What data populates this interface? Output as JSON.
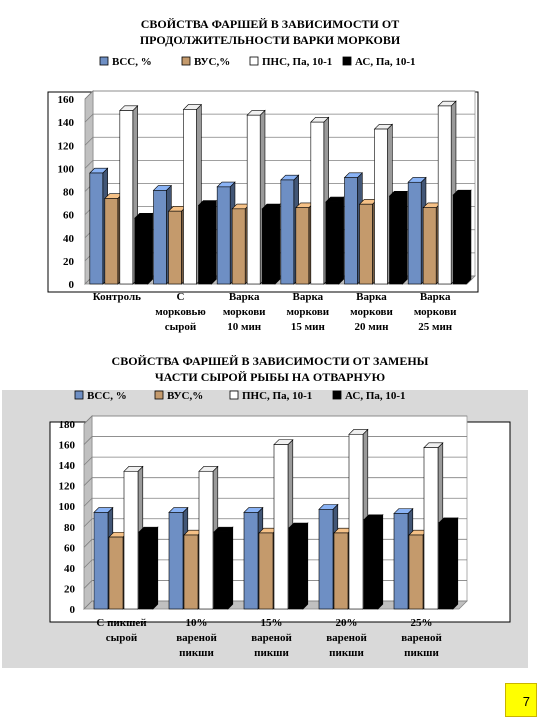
{
  "page_number": "7",
  "colors": {
    "bcc": "#6e8fc4",
    "vus": "#c49a6c",
    "pns": "#ffffff",
    "as": "#000000",
    "panel_bg": "#d9d9d9"
  },
  "chart_data": [
    {
      "type": "bar",
      "title": "СВОЙСТВА ФАРШЕЙ В ЗАВИСИМОСТИ ОТ\nПРОДОЛЖИТЕЛЬНОСТИ ВАРКИ МОРКОВИ",
      "categories": [
        "Контроль",
        "С\nморковью\nсырой",
        "Варка\nморкови\n10 мин",
        "Варка\nморкови\n15 мин",
        "Варка\nморкови\n20 мин",
        "Варка\nморкови\n25 мин"
      ],
      "series": [
        {
          "name": "ВСС, %",
          "values": [
            96,
            81,
            84,
            90,
            92,
            88
          ]
        },
        {
          "name": "ВУС,%",
          "values": [
            74,
            63,
            65,
            66,
            69,
            66
          ]
        },
        {
          "name": "ПНС, Па, 10-1",
          "values": [
            150,
            151,
            146,
            140,
            134,
            154
          ]
        },
        {
          "name": "АС, Па, 10-1",
          "values": [
            57,
            68,
            65,
            71,
            76,
            77
          ]
        }
      ],
      "ylim": [
        0,
        160
      ],
      "yticks": [
        0,
        20,
        40,
        60,
        80,
        100,
        120,
        140,
        160
      ],
      "grid": true,
      "legend": "top"
    },
    {
      "type": "bar",
      "title": "СВОЙСТВА ФАРШЕЙ В ЗАВИСИМОСТИ ОТ  ЗАМЕНЫ\nЧАСТИ СЫРОЙ РЫБЫ НА ОТВАРНУЮ",
      "categories": [
        "С пикшей\nсырой",
        "10%\nвареной\nпикши",
        "15%\nвареной\nпикши",
        "20%\nвареной\nпикши",
        "25%\nвареной\nпикши"
      ],
      "series": [
        {
          "name": "ВСС, %",
          "values": [
            94,
            94,
            94,
            97,
            93
          ]
        },
        {
          "name": "ВУС,%",
          "values": [
            70,
            72,
            74,
            74,
            72
          ]
        },
        {
          "name": "ПНС, Па, 10-1",
          "values": [
            134,
            134,
            160,
            170,
            157
          ]
        },
        {
          "name": "АС, Па, 10-1",
          "values": [
            75,
            75,
            79,
            87,
            84
          ]
        }
      ],
      "ylim": [
        0,
        180
      ],
      "yticks": [
        0,
        20,
        40,
        60,
        80,
        100,
        120,
        140,
        160,
        180
      ],
      "grid": true,
      "legend": "top"
    }
  ]
}
